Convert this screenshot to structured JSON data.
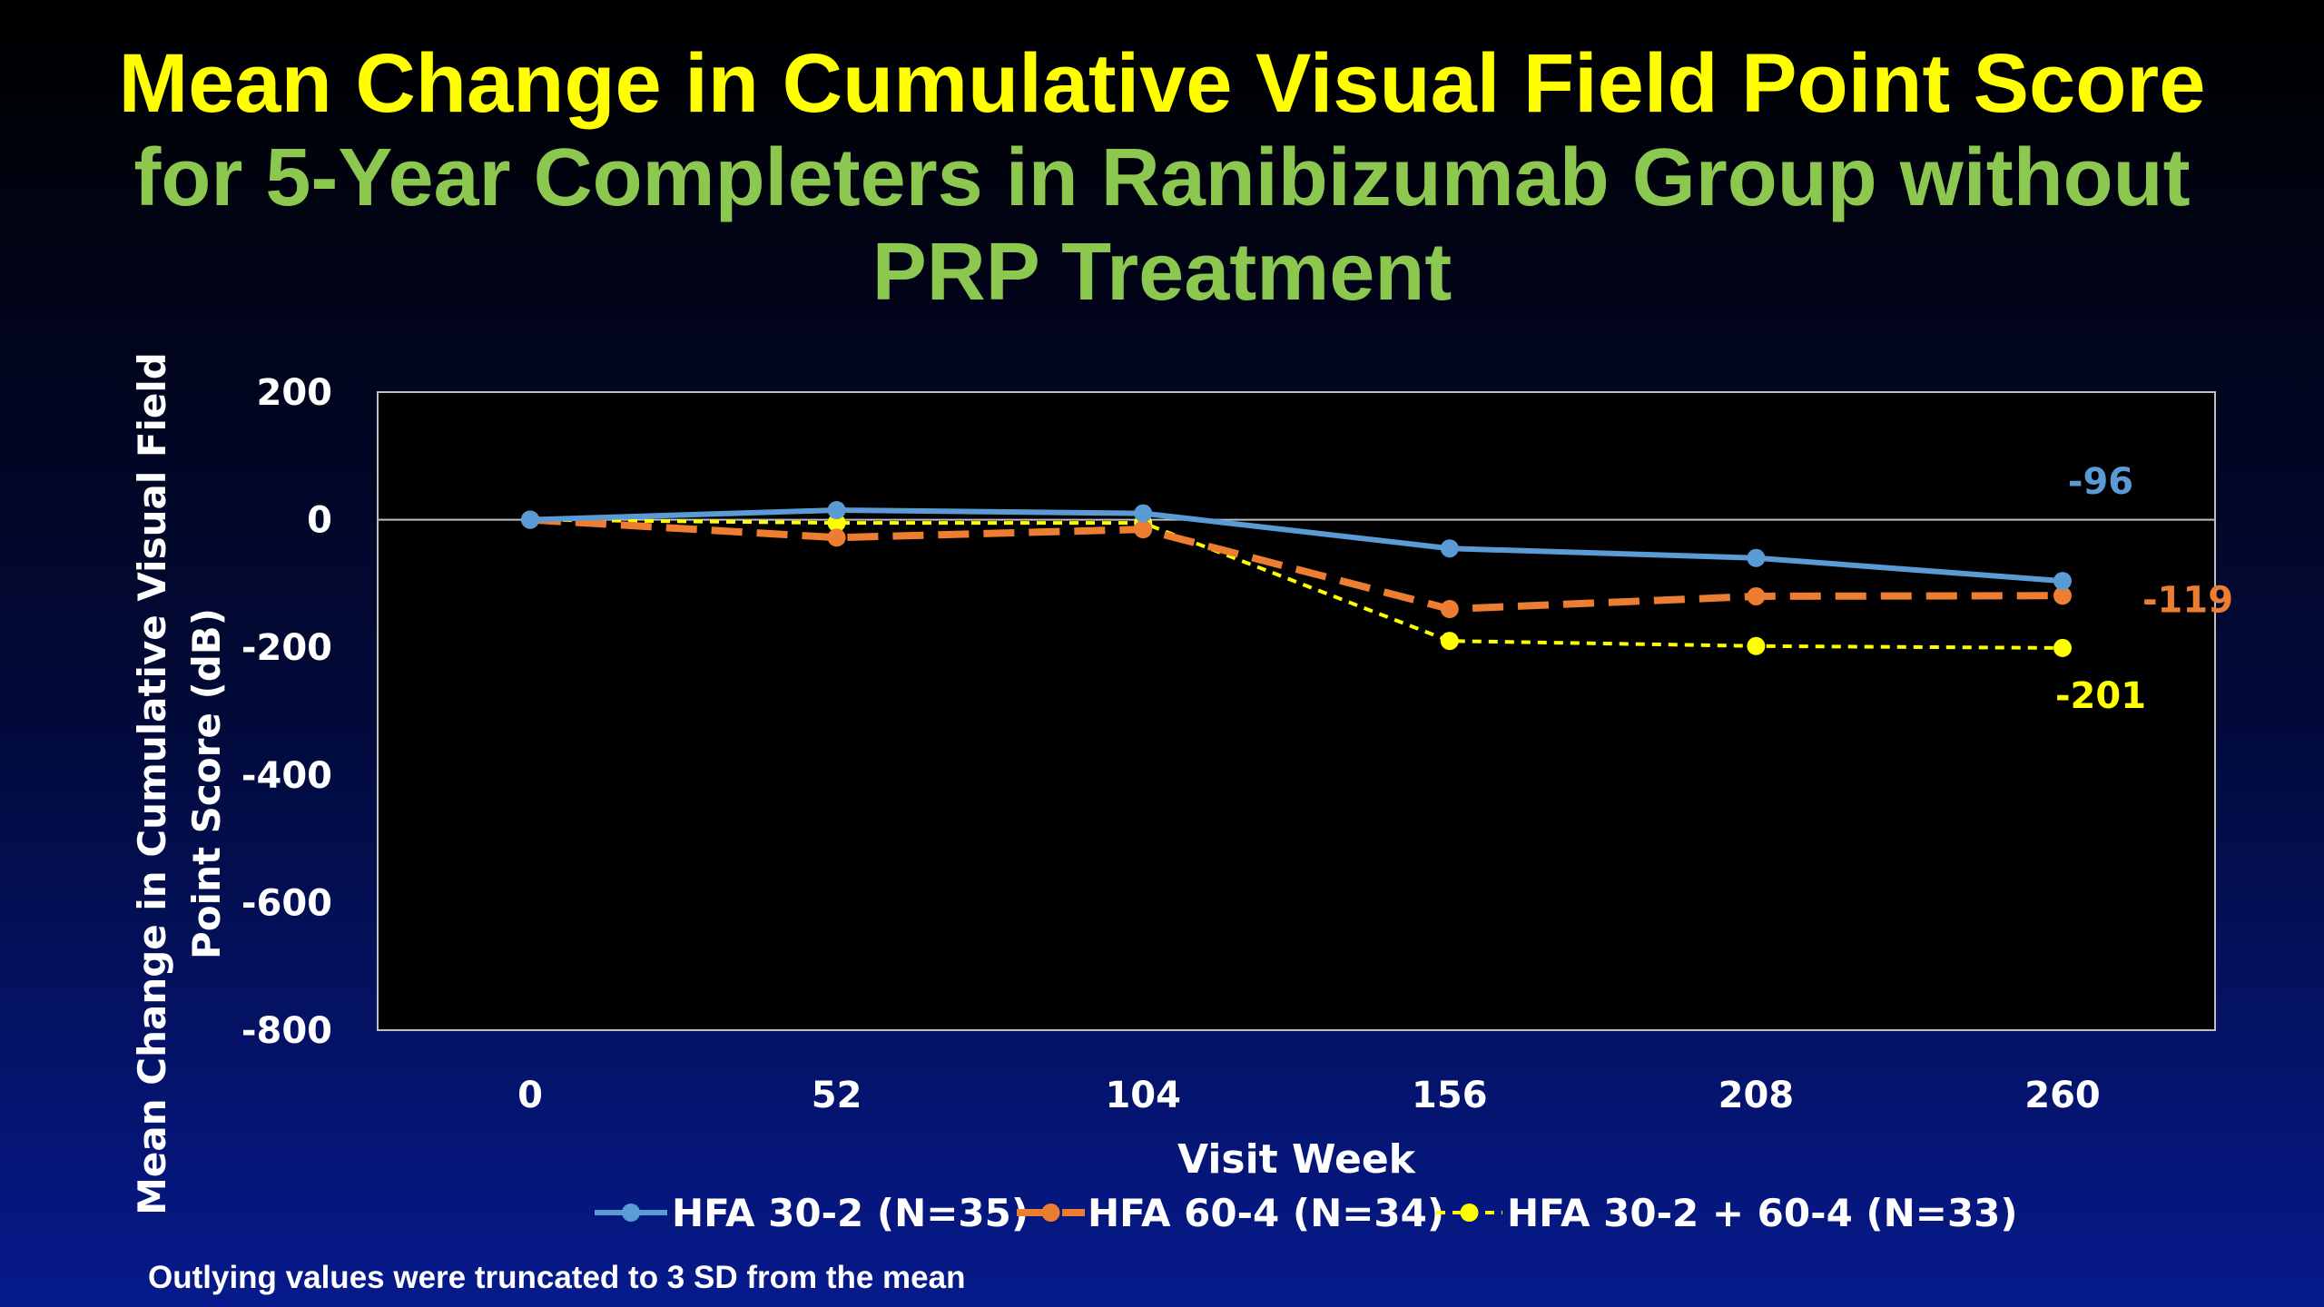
{
  "title": {
    "line1": "Mean Change in Cumulative Visual Field Point Score",
    "line2a": "for 5-Year Completers in Ranibizumab Group without",
    "line2b": "PRP Treatment"
  },
  "footnote": "Outlying values were truncated to 3 SD from the mean",
  "chart_data": {
    "type": "line",
    "x": [
      0,
      52,
      104,
      156,
      208,
      260
    ],
    "xlabel": "Visit Week",
    "ylabel_line1": "Mean Change in Cumulative Visual Field",
    "ylabel_line2": "Point Score (dB)",
    "ylim": [
      -800,
      200
    ],
    "yticks": [
      200,
      0,
      -200,
      -400,
      -600,
      -800
    ],
    "grid": false,
    "legend_position": "bottom",
    "series": [
      {
        "name": "HFA 30-2 (N=35)",
        "values": [
          0,
          15,
          10,
          -45,
          -60,
          -96
        ],
        "color": "#5b9bd5",
        "style": "solid",
        "end_label": "-96"
      },
      {
        "name": "HFA 60-4 (N=34)",
        "values": [
          0,
          -28,
          -15,
          -140,
          -120,
          -119
        ],
        "color": "#ed7d31",
        "style": "dashed",
        "end_label": "-119"
      },
      {
        "name": "HFA 30-2 + 60-4 (N=33)",
        "values": [
          0,
          -5,
          -5,
          -190,
          -198,
          -201
        ],
        "color": "#ffff00",
        "style": "dotted",
        "end_label": "-201"
      }
    ]
  }
}
